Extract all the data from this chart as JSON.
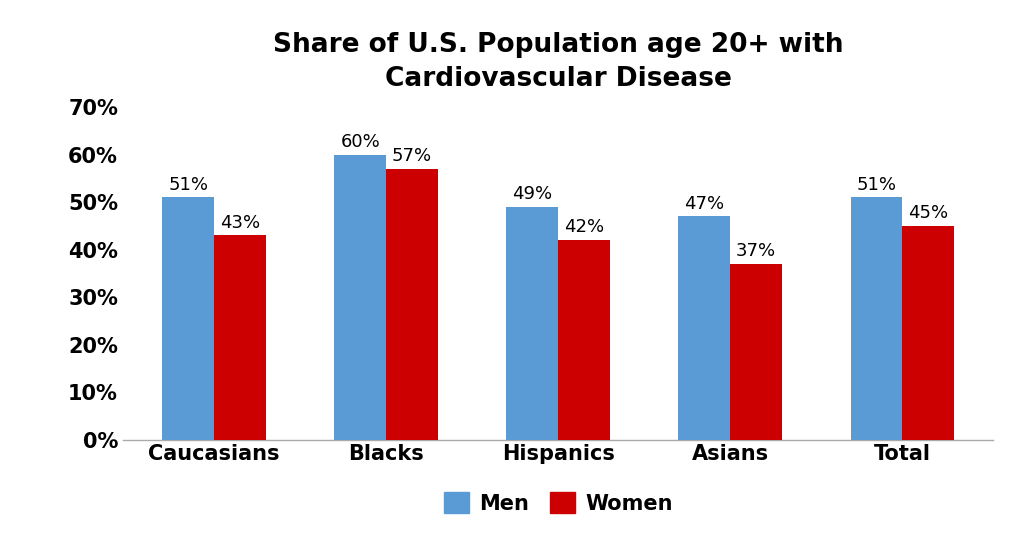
{
  "title": "Share of U.S. Population age 20+ with\nCardiovascular Disease",
  "categories": [
    "Caucasians",
    "Blacks",
    "Hispanics",
    "Asians",
    "Total"
  ],
  "men_values": [
    51,
    60,
    49,
    47,
    51
  ],
  "women_values": [
    43,
    57,
    42,
    37,
    45
  ],
  "men_color": "#5b9bd5",
  "women_color": "#cc0000",
  "bar_width": 0.3,
  "ylim": [
    0,
    70
  ],
  "yticks": [
    0,
    10,
    20,
    30,
    40,
    50,
    60,
    70
  ],
  "ytick_labels": [
    "0%",
    "10%",
    "20%",
    "30%",
    "40%",
    "50%",
    "60%",
    "70%"
  ],
  "title_fontsize": 19,
  "tick_fontsize": 15,
  "xlabel_fontsize": 15,
  "legend_fontsize": 15,
  "bar_label_fontsize": 13,
  "background_color": "#ffffff",
  "legend_men": "Men",
  "legend_women": "Women"
}
